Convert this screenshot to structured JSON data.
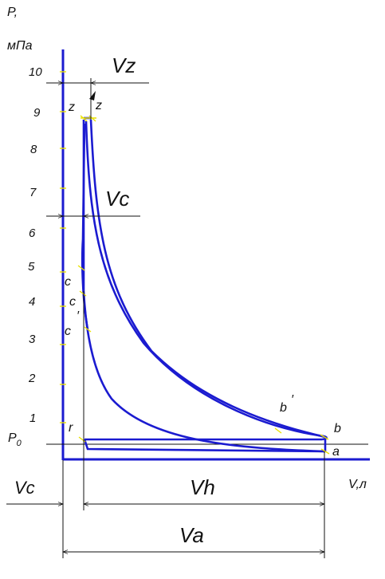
{
  "axes": {
    "y_label": "P,",
    "y_unit": "мПа",
    "x_label": "V,л",
    "p0_label": "P",
    "p0_sub": "0"
  },
  "y_ticks": [
    "10",
    "9",
    "8",
    "7",
    "6",
    "5",
    "4",
    "3",
    "2",
    "1"
  ],
  "points": {
    "z1": "z",
    "z2": "z",
    "c1": "c",
    "c2": "c",
    "c3": "c",
    "c2_prime": "′",
    "r": "r",
    "b_prime": "b",
    "b_prime_mark": "′",
    "b": "b",
    "a": "a"
  },
  "dimensions": {
    "vz": "Vz",
    "vc_upper": "Vc",
    "vc_lower": "Vc",
    "vh": "Vh",
    "va": "Va"
  },
  "colors": {
    "curve": "#1b1bd0",
    "markers": "#e8e000"
  }
}
